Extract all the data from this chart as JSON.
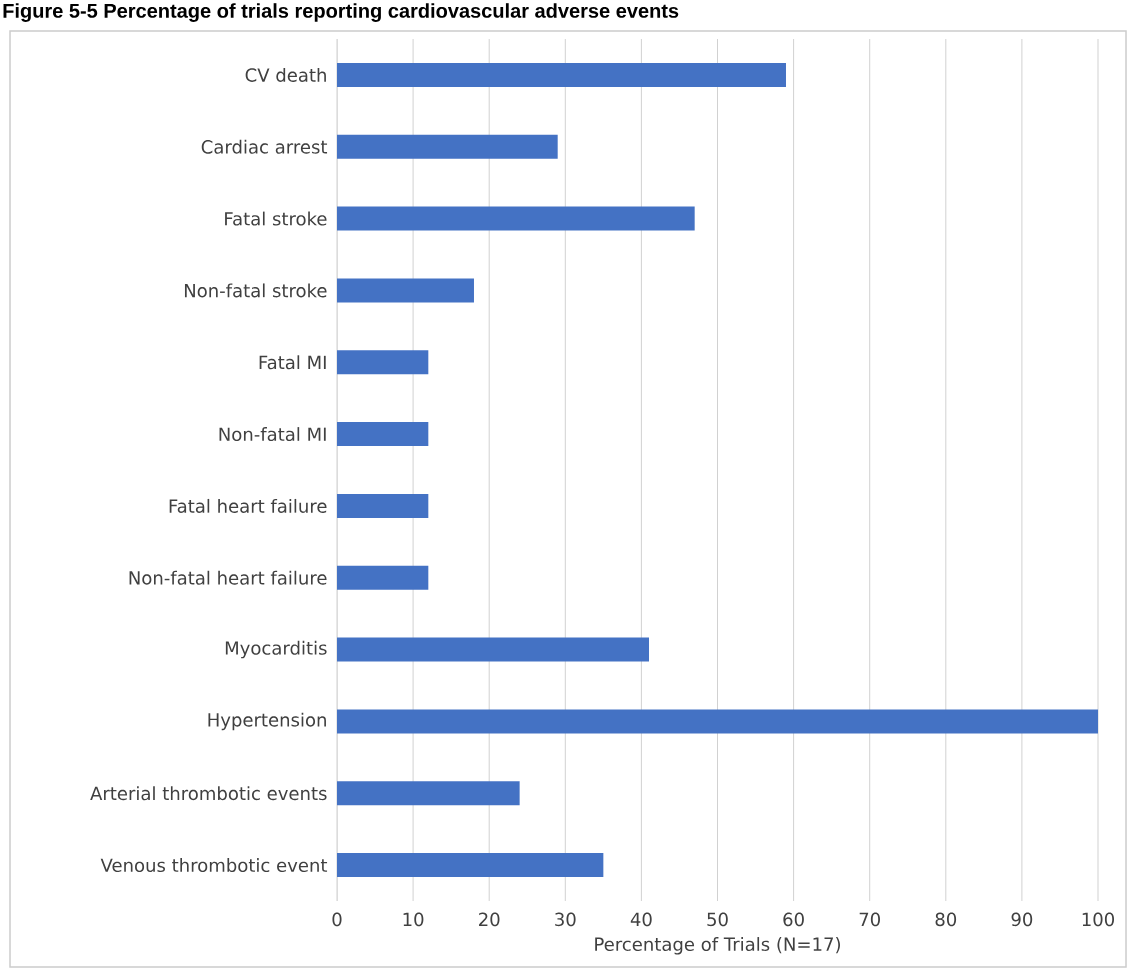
{
  "chart_data": {
    "type": "bar",
    "orientation": "horizontal",
    "title": "Figure 5-5 Percentage of trials reporting cardiovascular adverse events",
    "categories": [
      "CV death",
      "Cardiac arrest",
      "Fatal stroke",
      "Non-fatal stroke",
      "Fatal MI",
      "Non-fatal MI",
      "Fatal heart failure",
      "Non-fatal heart failure",
      "Myocarditis",
      "Hypertension",
      "Arterial thrombotic events",
      "Venous thrombotic event"
    ],
    "values": [
      59,
      29,
      47,
      18,
      12,
      12,
      12,
      12,
      41,
      100,
      24,
      35
    ],
    "color": "#4472c4",
    "xlabel": "Percentage of Trials (N=17)",
    "xlim": [
      0,
      100
    ],
    "xticks": [
      0,
      10,
      20,
      30,
      40,
      50,
      60,
      70,
      80,
      90,
      100
    ],
    "grid": "x"
  }
}
